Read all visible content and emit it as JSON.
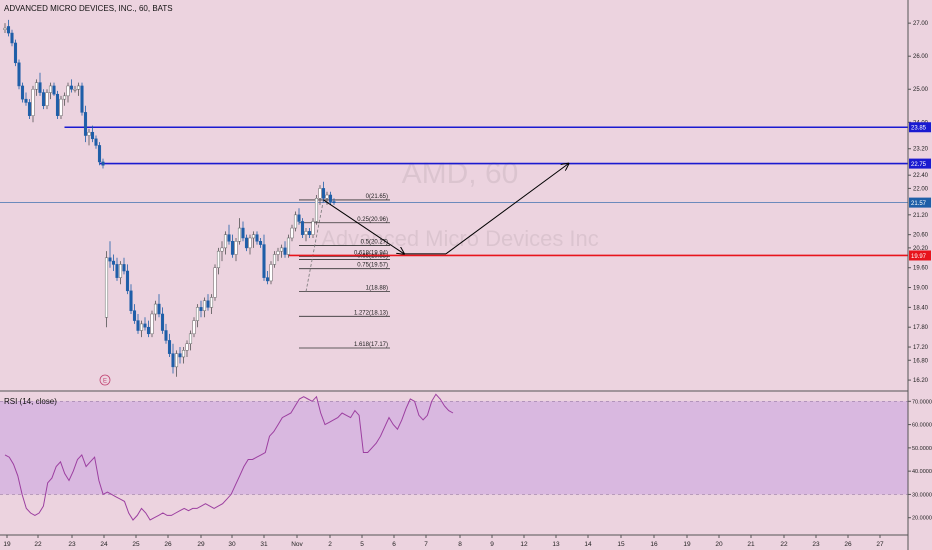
{
  "header": {
    "symbol_title": "ADVANCED MICRO DEVICES, INC., 60, BATS"
  },
  "watermark": {
    "big": "AMD, 60",
    "small": "Advanced Micro Devices Inc"
  },
  "event_marker": "E",
  "rsi_title": "RSI (14, close)",
  "colors": {
    "background": "#ecd3df",
    "up_candle": "#ffffff",
    "down_candle": "#1e5ea8",
    "horizontal_level": "#1a1ad0",
    "support_level": "#e8141c",
    "fib_line": "#333333",
    "rsi_line": "#9c3fa0",
    "rsi_band": "#d9b8e0"
  },
  "chart_data": [
    {
      "type": "candlestick",
      "title": "ADVANCED MICRO DEVICES, INC., 60, BATS",
      "x_tick_labels": [
        "19",
        "22",
        "23",
        "24",
        "25",
        "26",
        "29",
        "30",
        "31",
        "Nov",
        "2",
        "5",
        "6",
        "7",
        "8",
        "9",
        "12",
        "13",
        "14",
        "15",
        "16",
        "19",
        "20",
        "21",
        "22",
        "23",
        "26",
        "27"
      ],
      "y_ticks": [
        16.2,
        16.8,
        17.2,
        17.8,
        18.4,
        19.0,
        19.6,
        20.2,
        20.6,
        21.2,
        22.0,
        22.4,
        23.2,
        24.0,
        25.0,
        26.0,
        27.0
      ],
      "y_tick_labels": [
        "16.20",
        "16.80",
        "17.20",
        "17.80",
        "18.40",
        "19.00",
        "19.60",
        "20.20",
        "20.60",
        "21.20",
        "22.00",
        "22.40",
        "23.20",
        "24.00",
        "25.00",
        "26.00",
        "27.00"
      ],
      "ylim": [
        15.9,
        27.7
      ],
      "grid": false,
      "price_labels": [
        {
          "value": 23.85,
          "label": "23.85",
          "color": "#1a1ad0"
        },
        {
          "value": 22.75,
          "label": "22.75",
          "color": "#1a1ad0"
        },
        {
          "value": 21.57,
          "label": "21.57",
          "color": "#1e5ea8"
        },
        {
          "value": 19.97,
          "label": "19.97",
          "color": "#e8141c"
        }
      ],
      "candles": [
        [
          26.8,
          27.0,
          26.7,
          26.85
        ],
        [
          26.9,
          27.1,
          26.6,
          26.7
        ],
        [
          26.7,
          26.8,
          26.3,
          26.4
        ],
        [
          26.4,
          26.5,
          25.7,
          25.8
        ],
        [
          25.8,
          25.9,
          25.0,
          25.1
        ],
        [
          25.1,
          25.2,
          24.6,
          24.7
        ],
        [
          24.7,
          24.9,
          24.5,
          24.6
        ],
        [
          24.6,
          24.7,
          24.1,
          24.2
        ],
        [
          24.2,
          25.1,
          24.0,
          25.0
        ],
        [
          25.0,
          25.3,
          24.8,
          25.2
        ],
        [
          25.2,
          25.5,
          24.8,
          24.9
        ],
        [
          24.9,
          25.0,
          24.4,
          24.5
        ],
        [
          24.5,
          25.0,
          24.4,
          24.9
        ],
        [
          24.9,
          25.2,
          24.7,
          25.1
        ],
        [
          25.1,
          25.2,
          24.8,
          24.85
        ],
        [
          24.85,
          24.95,
          24.1,
          24.2
        ],
        [
          24.2,
          24.8,
          24.1,
          24.7
        ],
        [
          24.7,
          24.9,
          24.5,
          24.8
        ],
        [
          24.8,
          25.2,
          24.6,
          25.1
        ],
        [
          25.1,
          25.3,
          24.9,
          25.0
        ],
        [
          25.0,
          25.1,
          24.9,
          25.0
        ],
        [
          25.0,
          25.2,
          24.8,
          25.1
        ],
        [
          25.1,
          25.2,
          24.2,
          24.3
        ],
        [
          24.3,
          24.5,
          23.4,
          23.6
        ],
        [
          23.6,
          23.8,
          23.3,
          23.7
        ],
        [
          23.7,
          23.9,
          23.4,
          23.5
        ],
        [
          23.5,
          23.6,
          23.2,
          23.3
        ],
        [
          23.3,
          23.4,
          22.7,
          22.8
        ],
        [
          22.8,
          22.9,
          22.6,
          22.7
        ],
        [
          18.1,
          20.1,
          17.8,
          19.9
        ],
        [
          19.9,
          20.4,
          19.6,
          19.8
        ],
        [
          19.8,
          20.0,
          19.5,
          19.7
        ],
        [
          19.7,
          19.9,
          19.2,
          19.3
        ],
        [
          19.3,
          19.8,
          19.1,
          19.7
        ],
        [
          19.7,
          19.9,
          19.4,
          19.5
        ],
        [
          19.5,
          19.7,
          18.8,
          18.9
        ],
        [
          18.9,
          19.1,
          18.2,
          18.3
        ],
        [
          18.3,
          18.5,
          17.9,
          18.0
        ],
        [
          18.0,
          18.2,
          17.6,
          17.7
        ],
        [
          17.7,
          18.0,
          17.5,
          17.9
        ],
        [
          17.9,
          18.1,
          17.7,
          17.8
        ],
        [
          17.8,
          18.0,
          17.5,
          17.6
        ],
        [
          17.6,
          18.3,
          17.5,
          18.2
        ],
        [
          18.2,
          18.6,
          18.0,
          18.5
        ],
        [
          18.5,
          18.8,
          18.1,
          18.2
        ],
        [
          18.2,
          18.4,
          17.6,
          17.7
        ],
        [
          17.7,
          17.9,
          17.3,
          17.4
        ],
        [
          17.4,
          17.6,
          16.9,
          17.0
        ],
        [
          17.0,
          17.3,
          16.4,
          16.6
        ],
        [
          16.6,
          17.1,
          16.3,
          17.0
        ],
        [
          17.0,
          17.2,
          16.7,
          16.9
        ],
        [
          16.9,
          17.2,
          16.7,
          17.1
        ],
        [
          17.1,
          17.4,
          16.9,
          17.3
        ],
        [
          17.3,
          17.7,
          17.1,
          17.6
        ],
        [
          17.6,
          18.1,
          17.5,
          18.0
        ],
        [
          18.0,
          18.5,
          17.8,
          18.4
        ],
        [
          18.4,
          18.6,
          18.1,
          18.3
        ],
        [
          18.3,
          18.7,
          18.1,
          18.6
        ],
        [
          18.6,
          18.8,
          18.3,
          18.4
        ],
        [
          18.4,
          18.8,
          18.2,
          18.7
        ],
        [
          18.7,
          19.7,
          18.6,
          19.6
        ],
        [
          19.6,
          20.2,
          19.4,
          20.1
        ],
        [
          20.1,
          20.4,
          19.8,
          20.2
        ],
        [
          20.2,
          20.7,
          20.0,
          20.6
        ],
        [
          20.6,
          20.9,
          20.3,
          20.4
        ],
        [
          20.4,
          20.6,
          19.9,
          20.0
        ],
        [
          20.0,
          20.5,
          19.8,
          20.4
        ],
        [
          20.4,
          21.1,
          20.3,
          20.8
        ],
        [
          20.8,
          21.0,
          20.4,
          20.5
        ],
        [
          20.5,
          20.6,
          20.1,
          20.2
        ],
        [
          20.2,
          20.6,
          20.0,
          20.5
        ],
        [
          20.5,
          20.7,
          20.2,
          20.6
        ],
        [
          20.6,
          20.7,
          20.3,
          20.4
        ],
        [
          20.4,
          20.5,
          20.2,
          20.3
        ],
        [
          20.3,
          20.6,
          19.2,
          19.3
        ],
        [
          19.3,
          19.5,
          19.1,
          19.2
        ],
        [
          19.2,
          19.8,
          19.1,
          19.7
        ],
        [
          19.7,
          20.1,
          19.6,
          20.0
        ],
        [
          20.0,
          20.2,
          19.8,
          20.1
        ],
        [
          20.1,
          20.3,
          19.9,
          20.2
        ],
        [
          20.2,
          20.4,
          19.9,
          20.0
        ],
        [
          20.0,
          20.6,
          19.9,
          20.5
        ],
        [
          20.5,
          20.9,
          20.4,
          20.8
        ],
        [
          20.8,
          21.3,
          20.7,
          21.2
        ],
        [
          21.2,
          21.4,
          20.9,
          21.0
        ],
        [
          21.0,
          21.1,
          20.5,
          20.6
        ],
        [
          20.6,
          20.8,
          20.4,
          20.7
        ],
        [
          20.7,
          20.8,
          20.5,
          20.6
        ],
        [
          20.6,
          21.1,
          20.5,
          21.0
        ],
        [
          21.0,
          21.8,
          20.9,
          21.7
        ],
        [
          21.7,
          22.1,
          21.5,
          22.0
        ],
        [
          22.0,
          22.2,
          21.6,
          21.7
        ],
        [
          21.7,
          21.9,
          21.5,
          21.8
        ],
        [
          21.8,
          21.9,
          21.5,
          21.6
        ],
        [
          21.6,
          21.7,
          21.5,
          21.57
        ]
      ],
      "horizontal_levels": [
        {
          "value": 23.85,
          "start_bar": 17
        },
        {
          "value": 22.75,
          "start_bar": 27
        },
        {
          "value": 19.97,
          "start_bar": 81
        }
      ],
      "price_line": 21.57,
      "fib_levels": [
        {
          "ratio": "0",
          "value": 21.65,
          "label": "0(21.65)"
        },
        {
          "ratio": "0.25",
          "value": 20.96,
          "label": "0.25(20.96)"
        },
        {
          "ratio": "0.5",
          "value": 20.27,
          "label": "0.5(20.27)"
        },
        {
          "ratio": "0.618",
          "value": 19.94,
          "label": "0.618(19.94)"
        },
        {
          "ratio": "0.65",
          "value": 19.85,
          "label": "0.65(19.85)"
        },
        {
          "ratio": "0.75",
          "value": 19.57,
          "label": "0.75(19.57)"
        },
        {
          "ratio": "1",
          "value": 18.88,
          "label": "1(18.88)"
        },
        {
          "ratio": "1.272",
          "value": 18.13,
          "label": "1.272(18.13)"
        },
        {
          "ratio": "1.618",
          "value": 17.17,
          "label": "1.618(17.17)"
        }
      ],
      "fib_extent_bars": [
        84,
        110
      ],
      "projection_path": [
        {
          "bar": 91,
          "value": 21.65
        },
        {
          "bar": 114,
          "value": 20.02
        },
        {
          "bar": 126,
          "value": 20.02
        },
        {
          "bar": 161,
          "value": 22.75
        }
      ],
      "fib_anchor": {
        "from": {
          "bar": 86,
          "value": 18.88
        },
        "to": {
          "bar": 91,
          "value": 21.65
        }
      }
    },
    {
      "type": "line",
      "title": "RSI (14, close)",
      "y_tick_labels": [
        "70.0000",
        "60.0000",
        "50.0000",
        "40.0000",
        "30.0000",
        "20.0000"
      ],
      "y_ticks": [
        70,
        60,
        50,
        40,
        30,
        20
      ],
      "ylim": [
        13,
        74
      ],
      "band": [
        30,
        70
      ],
      "values": [
        47,
        46,
        43,
        38,
        30,
        24,
        22,
        21,
        22,
        25,
        35,
        37,
        42,
        44,
        39,
        36,
        40,
        45,
        47,
        42,
        44,
        46,
        36,
        30,
        31,
        30,
        29,
        28,
        27,
        22,
        19,
        21,
        24,
        22,
        19,
        20,
        21,
        22,
        21,
        21,
        22,
        23,
        24,
        23,
        24,
        24,
        25,
        26,
        25,
        24,
        25,
        26,
        28,
        30,
        34,
        38,
        42,
        45,
        45,
        46,
        47,
        48,
        55,
        57,
        60,
        63,
        64,
        65,
        68,
        71,
        72,
        71,
        70,
        72,
        65,
        60,
        61,
        62,
        63,
        65,
        64,
        63,
        66,
        64,
        48,
        48,
        50,
        52,
        55,
        59,
        63,
        60,
        58,
        62,
        67,
        71,
        70,
        64,
        62,
        64,
        70,
        73,
        71,
        68,
        66,
        65
      ]
    }
  ]
}
